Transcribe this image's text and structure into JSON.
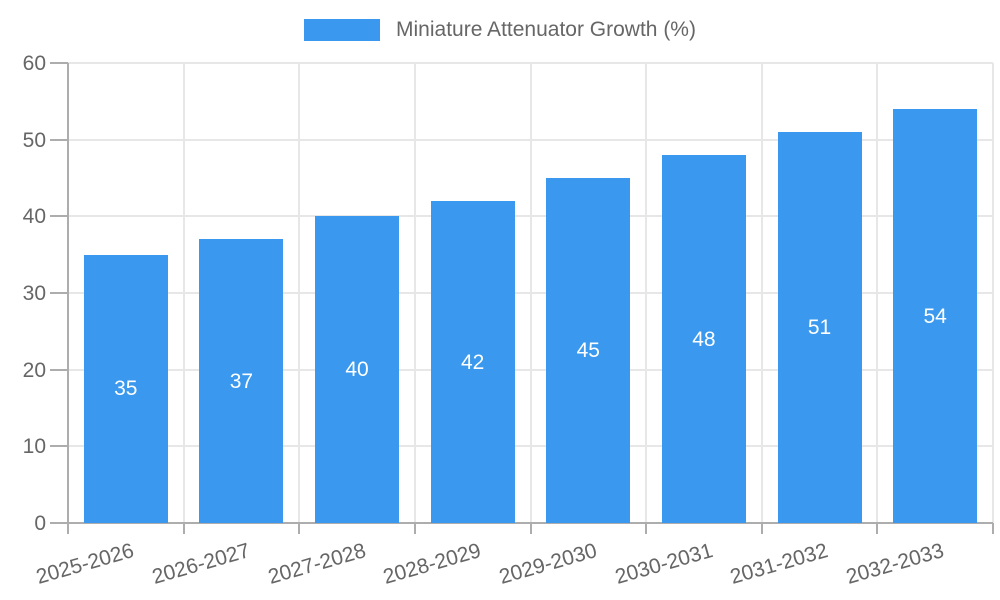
{
  "chart_data": {
    "type": "bar",
    "title": "",
    "legend_label": "Miniature Attenuator Growth (%)",
    "legend_position": "top-center",
    "categories": [
      "2025-2026",
      "2026-2027",
      "2027-2028",
      "2028-2029",
      "2029-2030",
      "2030-2031",
      "2031-2032",
      "2032-2033"
    ],
    "values": [
      35,
      37,
      40,
      42,
      45,
      48,
      51,
      54
    ],
    "value_labels": [
      "35",
      "37",
      "40",
      "42",
      "45",
      "48",
      "51",
      "54"
    ],
    "xlabel": "",
    "ylabel": "",
    "ylim": [
      0,
      60
    ],
    "y_ticks": [
      0,
      10,
      20,
      30,
      40,
      50,
      60
    ],
    "y_tick_labels": [
      "0",
      "10",
      "20",
      "30",
      "40",
      "50",
      "60"
    ],
    "grid": "both",
    "colors": {
      "bar": "#3a99ee",
      "gridline": "#e7e7e7",
      "axis": "#adadad",
      "tick_label": "#666666",
      "value_label": "#ffffff",
      "background": "#ffffff"
    }
  }
}
